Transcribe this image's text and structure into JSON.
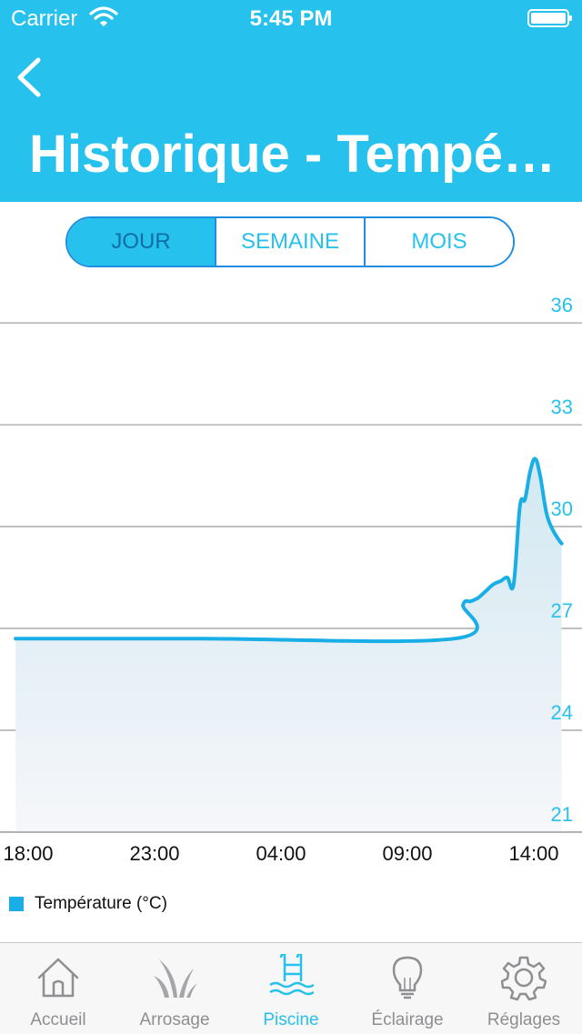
{
  "status_bar": {
    "carrier": "Carrier",
    "time": "5:45 PM"
  },
  "header": {
    "title": "Historique - Température"
  },
  "segments": [
    {
      "label": "JOUR",
      "active": true
    },
    {
      "label": "SEMAINE",
      "active": false
    },
    {
      "label": "MOIS",
      "active": false
    }
  ],
  "chart_data": {
    "type": "area",
    "y_ticks": [
      "36",
      "33",
      "30",
      "27",
      "24",
      "21"
    ],
    "x_ticks": [
      "18:00",
      "23:00",
      "04:00",
      "09:00",
      "14:00"
    ],
    "ylim": [
      21,
      36
    ],
    "grid": true,
    "legend_placement": "bottom-left",
    "series": [
      {
        "name": "Température (°C)",
        "color": "#1aaee7",
        "points": [
          [
            17.5,
            26.7
          ],
          [
            0.83,
            26.7
          ],
          [
            10.87,
            26.7
          ],
          [
            11.2,
            27.7
          ],
          [
            11.5,
            27.8
          ],
          [
            11.8,
            27.9
          ],
          [
            12.1,
            28.1
          ],
          [
            12.4,
            28.3
          ],
          [
            12.7,
            28.4
          ],
          [
            12.95,
            28.5
          ],
          [
            13.2,
            28.3
          ],
          [
            13.45,
            30.6
          ],
          [
            13.65,
            30.8
          ],
          [
            13.85,
            31.6
          ],
          [
            14.05,
            32.0
          ],
          [
            14.25,
            31.5
          ],
          [
            14.5,
            30.4
          ],
          [
            14.75,
            29.9
          ],
          [
            15.0,
            29.6
          ],
          [
            15.1,
            29.5
          ]
        ]
      }
    ]
  },
  "legend": {
    "label": "Température (°C)"
  },
  "tabs": [
    {
      "label": "Accueil",
      "icon": "home-icon",
      "active": false
    },
    {
      "label": "Arrosage",
      "icon": "grass-icon",
      "active": false
    },
    {
      "label": "Piscine",
      "icon": "pool-icon",
      "active": true
    },
    {
      "label": "Éclairage",
      "icon": "lightbulb-icon",
      "active": false
    },
    {
      "label": "Réglages",
      "icon": "gear-icon",
      "active": false
    }
  ]
}
